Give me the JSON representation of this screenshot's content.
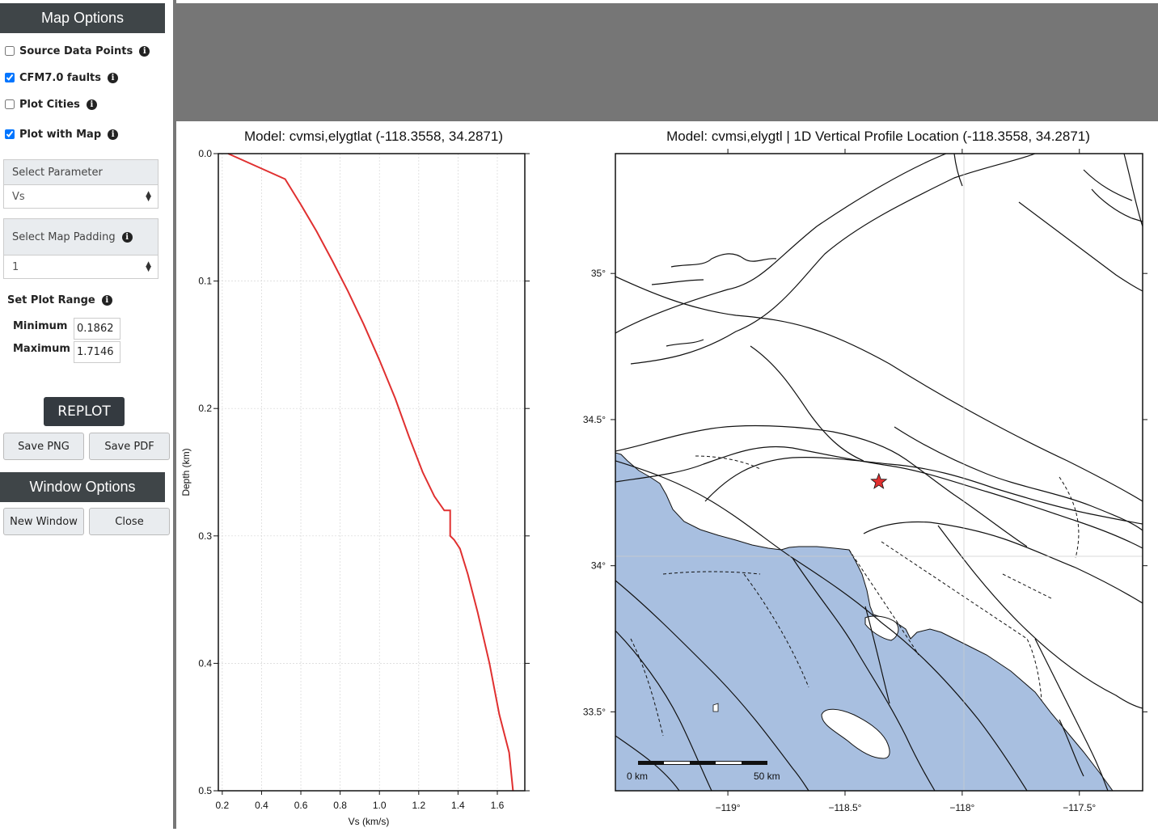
{
  "sidebar": {
    "map_options_title": "Map Options",
    "options": [
      {
        "label": "Source Data Points",
        "checked": false
      },
      {
        "label": "CFM7.0 faults",
        "checked": true
      },
      {
        "label": "Plot Cities",
        "checked": false
      },
      {
        "label": "Plot with Map",
        "checked": true
      }
    ],
    "select_parameter": {
      "label": "Select Parameter",
      "value": "Vs"
    },
    "select_map_padding": {
      "label": "Select Map Padding",
      "value": "1"
    },
    "plot_range": {
      "label": "Set Plot Range",
      "min_label": "Minimum",
      "min_value": "0.1862",
      "max_label": "Maximum",
      "max_value": "1.7146"
    },
    "replot_label": "REPLOT",
    "save_png_label": "Save PNG",
    "save_pdf_label": "Save PDF",
    "window_options_title": "Window Options",
    "new_window_label": "New Window",
    "close_label": "Close"
  },
  "chart_data": [
    {
      "type": "line",
      "title": "Model: cvmsi,elygtlat (-118.3558, 34.2871)",
      "xlabel": "Vs (km/s)",
      "ylabel": "Depth (km)",
      "xlim": [
        0.18,
        1.74
      ],
      "ylim": [
        0.5,
        0.0
      ],
      "xticks": [
        "0.2",
        "0.4",
        "0.6",
        "0.8",
        "1.0",
        "1.2",
        "1.4",
        "1.6"
      ],
      "yticks": [
        "0.0",
        "0.1",
        "0.2",
        "0.3",
        "0.4",
        "0.5"
      ],
      "grid": true,
      "line_color": "#e03030",
      "series": [
        {
          "x": [
            0.23,
            0.52,
            0.6,
            0.68,
            0.76,
            0.84,
            0.92,
            1.0,
            1.08,
            1.15,
            1.22,
            1.28,
            1.33,
            1.36,
            1.36,
            1.38,
            1.41,
            1.45,
            1.5,
            1.56,
            1.61,
            1.66,
            1.68
          ],
          "y": [
            0.0,
            0.02,
            0.04,
            0.061,
            0.084,
            0.108,
            0.134,
            0.162,
            0.192,
            0.222,
            0.25,
            0.269,
            0.28,
            0.28,
            0.3,
            0.303,
            0.31,
            0.33,
            0.36,
            0.4,
            0.44,
            0.47,
            0.5
          ]
        }
      ]
    },
    {
      "type": "map",
      "title": "Model: cvmsi,elygtl | 1D Vertical Profile Location (-118.3558, 34.2871)",
      "xlim": [
        -119.48,
        -117.23
      ],
      "ylim": [
        33.23,
        35.41
      ],
      "xticks": [
        "−119°",
        "−118.5°",
        "−118°",
        "−117.5°"
      ],
      "yticks": [
        "33.5°",
        "34°",
        "34.5°",
        "35°"
      ],
      "marker": {
        "lon": -118.3558,
        "lat": 34.2871,
        "color": "#e03030"
      },
      "ocean_color": "#a8bfe0",
      "scale_bar": {
        "left_label": "0 km",
        "right_label": "50 km"
      }
    }
  ]
}
